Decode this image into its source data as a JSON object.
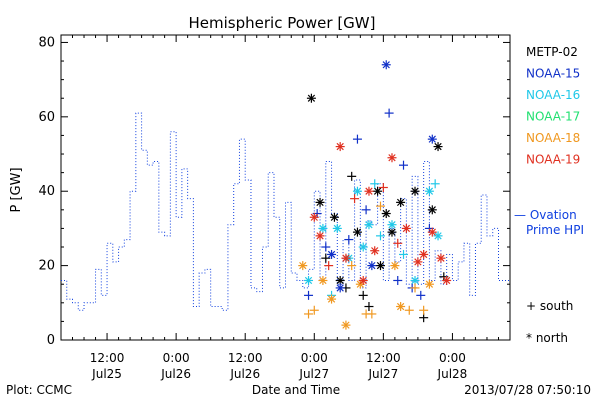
{
  "chart_data": {
    "type": "line",
    "title": "Hemispheric Power [GW]",
    "ylabel": "P [GW]",
    "xlabel": "Date and Time",
    "ylim": [
      0,
      82
    ],
    "yticks": [
      0,
      20,
      40,
      60,
      80
    ],
    "xlim_hours": [
      0,
      78
    ],
    "xticks": [
      {
        "h": 8,
        "time": "12:00",
        "date": "Jul25"
      },
      {
        "h": 20,
        "time": "0:00",
        "date": "Jul26"
      },
      {
        "h": 32,
        "time": "12:00",
        "date": "Jul26"
      },
      {
        "h": 44,
        "time": "0:00",
        "date": "Jul27"
      },
      {
        "h": 56,
        "time": "12:00",
        "date": "Jul27"
      },
      {
        "h": 68,
        "time": "0:00",
        "date": "Jul28"
      }
    ],
    "grid": false,
    "legend_position": "right",
    "satellites": [
      {
        "name": "METP-02",
        "color": "#000000"
      },
      {
        "name": "NOAA-15",
        "color": "#1030c8"
      },
      {
        "name": "NOAA-16",
        "color": "#20c8e8"
      },
      {
        "name": "NOAA-17",
        "color": "#20e070"
      },
      {
        "name": "NOAA-18",
        "color": "#f09820"
      },
      {
        "name": "NOAA-19",
        "color": "#e03020"
      }
    ],
    "ovation": {
      "name_line1": "— Ovation",
      "name_line2": "Prime HPI",
      "color": "#1040e0",
      "times": [
        0,
        1,
        2,
        3,
        4,
        5,
        6,
        7,
        8,
        9,
        10,
        11,
        12,
        13,
        14,
        15,
        16,
        17,
        18,
        19,
        20,
        21,
        22,
        23,
        24,
        25,
        26,
        27,
        28,
        29,
        30,
        31,
        32,
        33,
        34,
        35,
        36,
        37,
        38,
        39,
        40,
        41,
        42,
        43,
        44,
        45,
        46,
        47,
        48,
        49,
        50,
        51,
        52,
        53,
        54,
        55,
        56,
        57,
        58,
        59,
        60,
        61,
        62,
        63,
        64,
        65,
        66,
        67,
        68,
        69,
        70,
        71,
        72,
        73,
        74,
        75,
        76,
        77
      ],
      "values": [
        16,
        11,
        10,
        8,
        10,
        10,
        19,
        12,
        26,
        21,
        25,
        27,
        40,
        61,
        51,
        47,
        48,
        29,
        28,
        56,
        33,
        46,
        38,
        9,
        18,
        19,
        9,
        9,
        8,
        31,
        42,
        54,
        43,
        14,
        13,
        25,
        45,
        33,
        14,
        37,
        18,
        16,
        14,
        19,
        40,
        16,
        48,
        34,
        15,
        27,
        16,
        43,
        14,
        32,
        31,
        42,
        16,
        30,
        21,
        38,
        15,
        44,
        15,
        48,
        16,
        24,
        15,
        23,
        16,
        21,
        26,
        12,
        26,
        39,
        28,
        30,
        16,
        16
      ]
    },
    "markers": [
      {
        "t": 43.5,
        "y": 65,
        "sym": "north",
        "sat": "METP-02"
      },
      {
        "t": 45.0,
        "y": 37,
        "sym": "north",
        "sat": "METP-02"
      },
      {
        "t": 46.0,
        "y": 22,
        "sym": "south",
        "sat": "METP-02"
      },
      {
        "t": 47.5,
        "y": 33,
        "sym": "north",
        "sat": "METP-02"
      },
      {
        "t": 48.5,
        "y": 16,
        "sym": "north",
        "sat": "METP-02"
      },
      {
        "t": 49.5,
        "y": 14,
        "sym": "south",
        "sat": "METP-02"
      },
      {
        "t": 50.5,
        "y": 44,
        "sym": "south",
        "sat": "METP-02"
      },
      {
        "t": 51.5,
        "y": 29,
        "sym": "north",
        "sat": "METP-02"
      },
      {
        "t": 52.5,
        "y": 12,
        "sym": "south",
        "sat": "METP-02"
      },
      {
        "t": 53.5,
        "y": 9,
        "sym": "south",
        "sat": "METP-02"
      },
      {
        "t": 55.0,
        "y": 40,
        "sym": "north",
        "sat": "METP-02"
      },
      {
        "t": 55.5,
        "y": 20,
        "sym": "north",
        "sat": "METP-02"
      },
      {
        "t": 56.5,
        "y": 34,
        "sym": "north",
        "sat": "METP-02"
      },
      {
        "t": 57.5,
        "y": 29,
        "sym": "north",
        "sat": "METP-02"
      },
      {
        "t": 59.0,
        "y": 37,
        "sym": "north",
        "sat": "METP-02"
      },
      {
        "t": 61.5,
        "y": 40,
        "sym": "north",
        "sat": "METP-02"
      },
      {
        "t": 63.0,
        "y": 6,
        "sym": "south",
        "sat": "METP-02"
      },
      {
        "t": 64.5,
        "y": 35,
        "sym": "north",
        "sat": "METP-02"
      },
      {
        "t": 65.5,
        "y": 52,
        "sym": "north",
        "sat": "METP-02"
      },
      {
        "t": 66.5,
        "y": 17,
        "sym": "south",
        "sat": "METP-02"
      },
      {
        "t": 43.0,
        "y": 12,
        "sym": "south",
        "sat": "NOAA-15"
      },
      {
        "t": 44.5,
        "y": 34,
        "sym": "south",
        "sat": "NOAA-15"
      },
      {
        "t": 46.0,
        "y": 25,
        "sym": "south",
        "sat": "NOAA-15"
      },
      {
        "t": 47.0,
        "y": 23,
        "sym": "north",
        "sat": "NOAA-15"
      },
      {
        "t": 48.5,
        "y": 14,
        "sym": "north",
        "sat": "NOAA-15"
      },
      {
        "t": 50.0,
        "y": 27,
        "sym": "south",
        "sat": "NOAA-15"
      },
      {
        "t": 51.5,
        "y": 54,
        "sym": "south",
        "sat": "NOAA-15"
      },
      {
        "t": 53.0,
        "y": 35,
        "sym": "south",
        "sat": "NOAA-15"
      },
      {
        "t": 54.0,
        "y": 20,
        "sym": "north",
        "sat": "NOAA-15"
      },
      {
        "t": 56.5,
        "y": 74,
        "sym": "north",
        "sat": "NOAA-15"
      },
      {
        "t": 57.0,
        "y": 61,
        "sym": "south",
        "sat": "NOAA-15"
      },
      {
        "t": 58.5,
        "y": 16,
        "sym": "south",
        "sat": "NOAA-15"
      },
      {
        "t": 59.5,
        "y": 47,
        "sym": "south",
        "sat": "NOAA-15"
      },
      {
        "t": 61.0,
        "y": 14,
        "sym": "south",
        "sat": "NOAA-15"
      },
      {
        "t": 62.5,
        "y": 12,
        "sym": "south",
        "sat": "NOAA-15"
      },
      {
        "t": 64.0,
        "y": 30,
        "sym": "south",
        "sat": "NOAA-15"
      },
      {
        "t": 64.5,
        "y": 54,
        "sym": "north",
        "sat": "NOAA-15"
      },
      {
        "t": 43.0,
        "y": 16,
        "sym": "north",
        "sat": "NOAA-16"
      },
      {
        "t": 45.5,
        "y": 30,
        "sym": "north",
        "sat": "NOAA-16"
      },
      {
        "t": 47.0,
        "y": 12,
        "sym": "south",
        "sat": "NOAA-16"
      },
      {
        "t": 48.0,
        "y": 30,
        "sym": "north",
        "sat": "NOAA-16"
      },
      {
        "t": 50.0,
        "y": 22,
        "sym": "north",
        "sat": "NOAA-16"
      },
      {
        "t": 51.5,
        "y": 40,
        "sym": "north",
        "sat": "NOAA-16"
      },
      {
        "t": 52.5,
        "y": 25,
        "sym": "north",
        "sat": "NOAA-16"
      },
      {
        "t": 53.5,
        "y": 31,
        "sym": "north",
        "sat": "NOAA-16"
      },
      {
        "t": 54.5,
        "y": 42,
        "sym": "south",
        "sat": "NOAA-16"
      },
      {
        "t": 55.5,
        "y": 28,
        "sym": "south",
        "sat": "NOAA-16"
      },
      {
        "t": 57.5,
        "y": 31,
        "sym": "north",
        "sat": "NOAA-16"
      },
      {
        "t": 59.5,
        "y": 23,
        "sym": "south",
        "sat": "NOAA-16"
      },
      {
        "t": 61.5,
        "y": 16,
        "sym": "north",
        "sat": "NOAA-16"
      },
      {
        "t": 64.0,
        "y": 40,
        "sym": "north",
        "sat": "NOAA-16"
      },
      {
        "t": 65.0,
        "y": 42,
        "sym": "south",
        "sat": "NOAA-16"
      },
      {
        "t": 65.5,
        "y": 28,
        "sym": "north",
        "sat": "NOAA-16"
      },
      {
        "t": 42.0,
        "y": 20,
        "sym": "north",
        "sat": "NOAA-18"
      },
      {
        "t": 43.0,
        "y": 7,
        "sym": "south",
        "sat": "NOAA-18"
      },
      {
        "t": 44.0,
        "y": 8,
        "sym": "south",
        "sat": "NOAA-18"
      },
      {
        "t": 45.5,
        "y": 16,
        "sym": "north",
        "sat": "NOAA-18"
      },
      {
        "t": 47.0,
        "y": 11,
        "sym": "north",
        "sat": "NOAA-18"
      },
      {
        "t": 49.5,
        "y": 4,
        "sym": "north",
        "sat": "NOAA-18"
      },
      {
        "t": 50.5,
        "y": 20,
        "sym": "south",
        "sat": "NOAA-18"
      },
      {
        "t": 52.0,
        "y": 15,
        "sym": "north",
        "sat": "NOAA-18"
      },
      {
        "t": 53.0,
        "y": 7,
        "sym": "south",
        "sat": "NOAA-18"
      },
      {
        "t": 54.0,
        "y": 7,
        "sym": "south",
        "sat": "NOAA-18"
      },
      {
        "t": 55.5,
        "y": 36,
        "sym": "south",
        "sat": "NOAA-18"
      },
      {
        "t": 58.0,
        "y": 20,
        "sym": "north",
        "sat": "NOAA-18"
      },
      {
        "t": 59.0,
        "y": 9,
        "sym": "north",
        "sat": "NOAA-18"
      },
      {
        "t": 60.5,
        "y": 8,
        "sym": "south",
        "sat": "NOAA-18"
      },
      {
        "t": 61.5,
        "y": 14,
        "sym": "south",
        "sat": "NOAA-18"
      },
      {
        "t": 63.0,
        "y": 8,
        "sym": "south",
        "sat": "NOAA-18"
      },
      {
        "t": 64.0,
        "y": 15,
        "sym": "north",
        "sat": "NOAA-18"
      },
      {
        "t": 44.0,
        "y": 33,
        "sym": "north",
        "sat": "NOAA-19"
      },
      {
        "t": 45.0,
        "y": 28,
        "sym": "north",
        "sat": "NOAA-19"
      },
      {
        "t": 46.5,
        "y": 20,
        "sym": "south",
        "sat": "NOAA-19"
      },
      {
        "t": 48.5,
        "y": 52,
        "sym": "north",
        "sat": "NOAA-19"
      },
      {
        "t": 49.5,
        "y": 22,
        "sym": "north",
        "sat": "NOAA-19"
      },
      {
        "t": 51.0,
        "y": 38,
        "sym": "south",
        "sat": "NOAA-19"
      },
      {
        "t": 52.5,
        "y": 16,
        "sym": "north",
        "sat": "NOAA-19"
      },
      {
        "t": 53.5,
        "y": 40,
        "sym": "north",
        "sat": "NOAA-19"
      },
      {
        "t": 54.5,
        "y": 24,
        "sym": "north",
        "sat": "NOAA-19"
      },
      {
        "t": 56.0,
        "y": 41,
        "sym": "south",
        "sat": "NOAA-19"
      },
      {
        "t": 57.5,
        "y": 49,
        "sym": "north",
        "sat": "NOAA-19"
      },
      {
        "t": 58.5,
        "y": 26,
        "sym": "south",
        "sat": "NOAA-19"
      },
      {
        "t": 60.0,
        "y": 30,
        "sym": "north",
        "sat": "NOAA-19"
      },
      {
        "t": 62.0,
        "y": 21,
        "sym": "north",
        "sat": "NOAA-19"
      },
      {
        "t": 63.0,
        "y": 23,
        "sym": "north",
        "sat": "NOAA-19"
      },
      {
        "t": 64.5,
        "y": 29,
        "sym": "north",
        "sat": "NOAA-19"
      },
      {
        "t": 66.0,
        "y": 22,
        "sym": "north",
        "sat": "NOAA-19"
      },
      {
        "t": 67.0,
        "y": 16,
        "sym": "north",
        "sat": "NOAA-19"
      }
    ],
    "symbol_legend": {
      "south": "+ south",
      "north": "* north"
    }
  },
  "footer": {
    "left": "Plot: CCMC",
    "right": "2013/07/28 07:50:10"
  }
}
